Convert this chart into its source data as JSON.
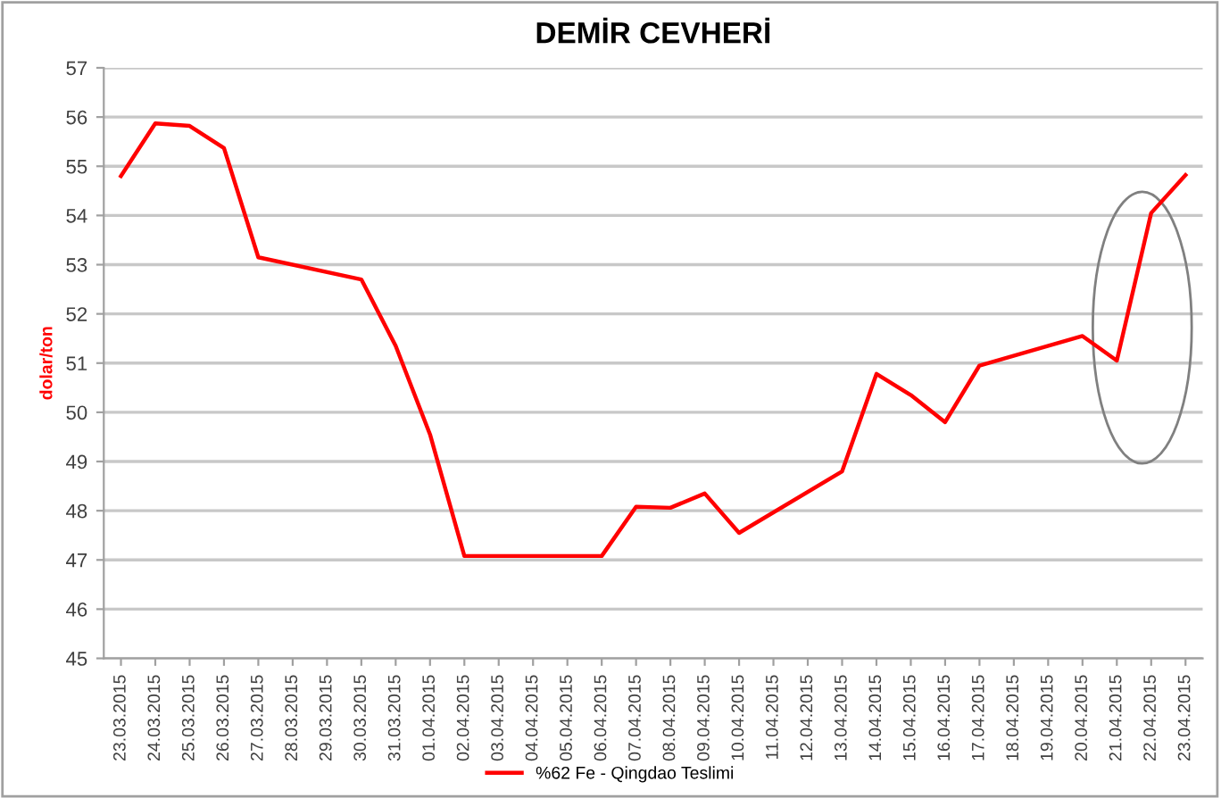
{
  "chart_data": {
    "type": "line",
    "title": "DEMİR CEVHERİ",
    "ylabel": "dolar/ton",
    "x": [
      "2015-03-23",
      "2015-03-24",
      "2015-03-25",
      "2015-03-26",
      "2015-03-27",
      "2015-03-30",
      "2015-03-31",
      "2015-04-01",
      "2015-04-02",
      "2015-04-06",
      "2015-04-07",
      "2015-04-08",
      "2015-04-09",
      "2015-04-10",
      "2015-04-13",
      "2015-04-14",
      "2015-04-15",
      "2015-04-16",
      "2015-04-17",
      "2015-04-20",
      "2015-04-21",
      "2015-04-22",
      "2015-04-23"
    ],
    "series": [
      {
        "name": "%62 Fe - Qingdao Teslimi",
        "color": "#ff0000",
        "values": [
          54.8,
          55.87,
          55.82,
          55.37,
          53.15,
          52.7,
          51.35,
          49.55,
          47.08,
          47.08,
          48.08,
          48.06,
          48.35,
          47.55,
          48.8,
          50.78,
          50.35,
          49.8,
          50.95,
          51.55,
          51.05,
          54.05,
          54.82
        ]
      }
    ],
    "xlim": [
      "2015-03-22T12:00",
      "2015-04-23T12:00"
    ],
    "xticks": [
      {
        "value": "2015-03-23",
        "label": "23.03.2015"
      },
      {
        "value": "2015-03-24",
        "label": "24.03.2015"
      },
      {
        "value": "2015-03-25",
        "label": "25.03.2015"
      },
      {
        "value": "2015-03-26",
        "label": "26.03.2015"
      },
      {
        "value": "2015-03-27",
        "label": "27.03.2015"
      },
      {
        "value": "2015-03-28",
        "label": "28.03.2015"
      },
      {
        "value": "2015-03-29",
        "label": "29.03.2015"
      },
      {
        "value": "2015-03-30",
        "label": "30.03.2015"
      },
      {
        "value": "2015-03-31",
        "label": "31.03.2015"
      },
      {
        "value": "2015-04-01",
        "label": "01.04.2015"
      },
      {
        "value": "2015-04-02",
        "label": "02.04.2015"
      },
      {
        "value": "2015-04-03",
        "label": "03.04.2015"
      },
      {
        "value": "2015-04-04",
        "label": "04.04.2015"
      },
      {
        "value": "2015-04-05",
        "label": "05.04.2015"
      },
      {
        "value": "2015-04-06",
        "label": "06.04.2015"
      },
      {
        "value": "2015-04-07",
        "label": "07.04.2015"
      },
      {
        "value": "2015-04-08",
        "label": "08.04.2015"
      },
      {
        "value": "2015-04-09",
        "label": "09.04.2015"
      },
      {
        "value": "2015-04-10",
        "label": "10.04.2015"
      },
      {
        "value": "2015-04-11",
        "label": "11.04.2015"
      },
      {
        "value": "2015-04-12",
        "label": "12.04.2015"
      },
      {
        "value": "2015-04-13",
        "label": "13.04.2015"
      },
      {
        "value": "2015-04-14",
        "label": "14.04.2015"
      },
      {
        "value": "2015-04-15",
        "label": "15.04.2015"
      },
      {
        "value": "2015-04-16",
        "label": "16.04.2015"
      },
      {
        "value": "2015-04-17",
        "label": "17.04.2015"
      },
      {
        "value": "2015-04-18",
        "label": "18.04.2015"
      },
      {
        "value": "2015-04-19",
        "label": "19.04.2015"
      },
      {
        "value": "2015-04-20",
        "label": "20.04.2015"
      },
      {
        "value": "2015-04-21",
        "label": "21.04.2015"
      },
      {
        "value": "2015-04-22",
        "label": "22.04.2015"
      },
      {
        "value": "2015-04-23",
        "label": "23.04.2015"
      }
    ],
    "ylim": [
      45,
      57
    ],
    "yticks": [
      45,
      46,
      47,
      48,
      49,
      50,
      51,
      52,
      53,
      54,
      55,
      56,
      57
    ],
    "grid": "y",
    "legend": "bottom",
    "marker": "none",
    "line_style": "solid"
  }
}
